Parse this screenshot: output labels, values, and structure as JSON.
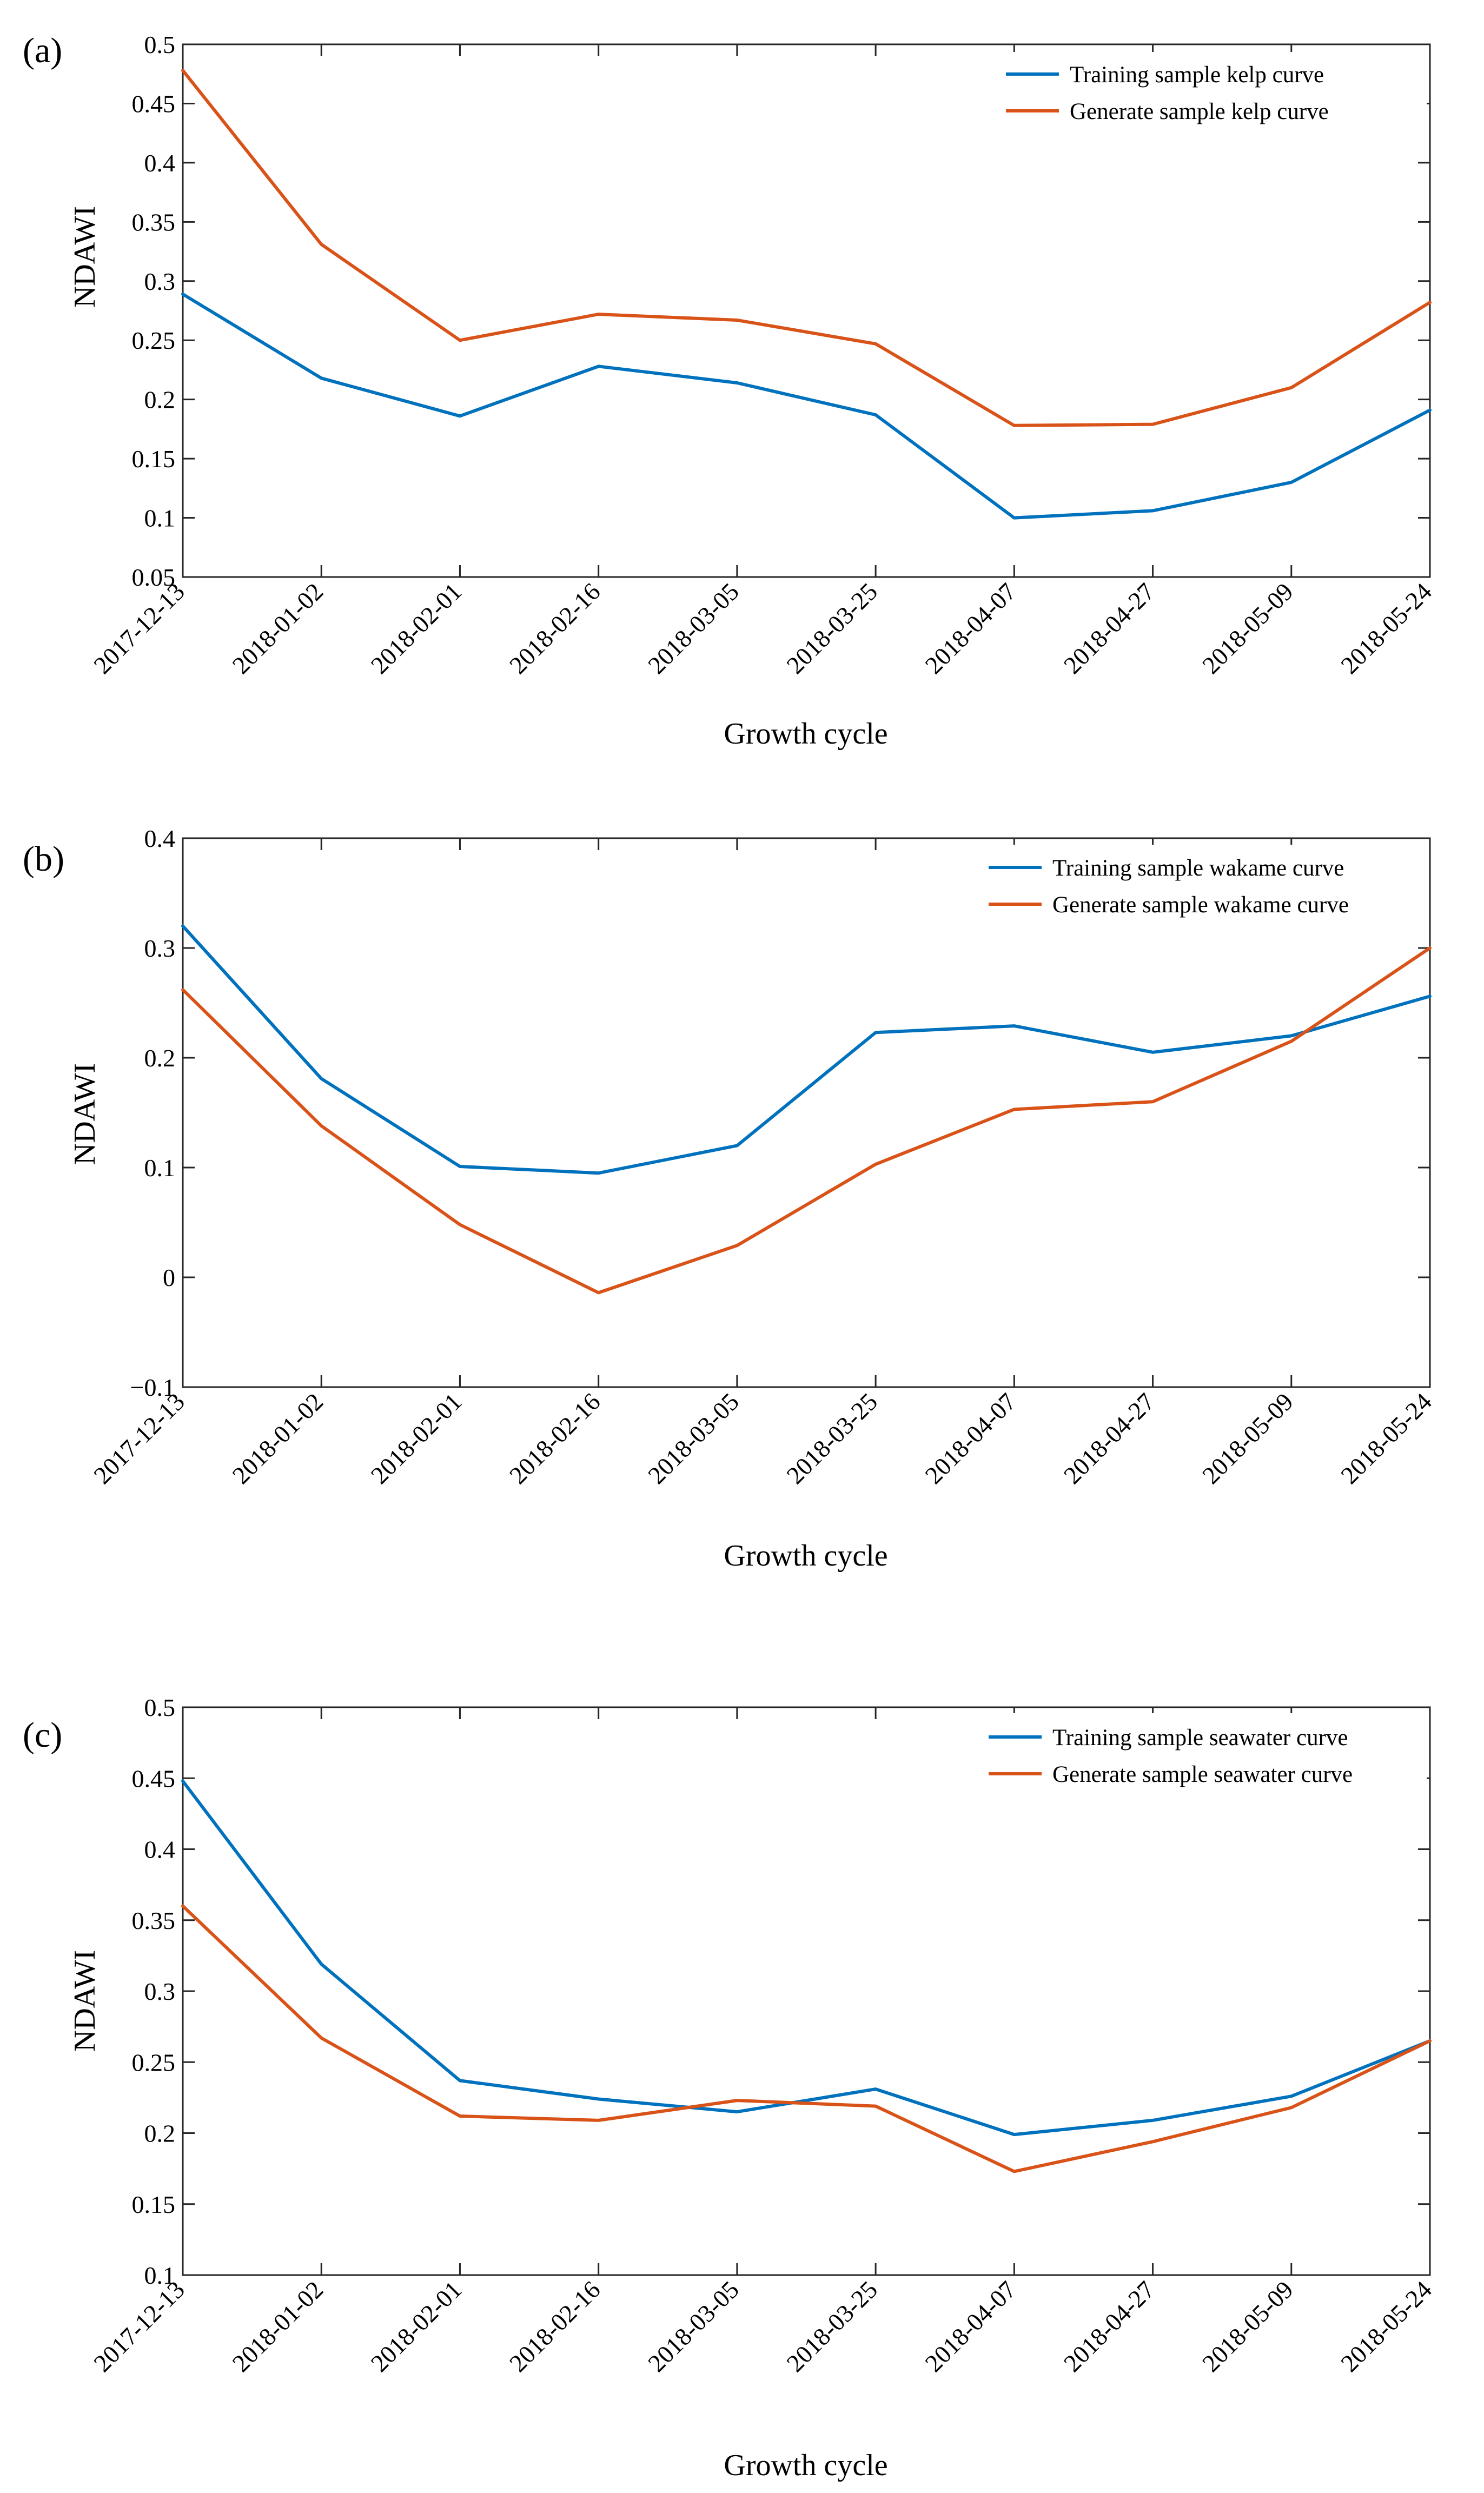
{
  "chart_data": [
    {
      "type": "line",
      "panel_label": "(a)",
      "xlabel": "Growth cycle",
      "ylabel": "NDAWI",
      "categories": [
        "2017-12-13",
        "2018-01-02",
        "2018-02-01",
        "2018-02-16",
        "2018-03-05",
        "2018-03-25",
        "2018-04-07",
        "2018-04-27",
        "2018-05-09",
        "2018-05-24"
      ],
      "ylim": [
        0.05,
        0.5
      ],
      "yticks": [
        0.05,
        0.1,
        0.15,
        0.2,
        0.25,
        0.3,
        0.35,
        0.4,
        0.45,
        0.5
      ],
      "ytick_labels": [
        "0.05",
        "0.1",
        "0.15",
        "0.2",
        "0.25",
        "0.3",
        "0.35",
        "0.4",
        "0.45",
        "0.5"
      ],
      "legend_position": "top-right",
      "series": [
        {
          "name": "Training sample kelp curve",
          "color": "#0072BD",
          "values": [
            0.289,
            0.218,
            0.186,
            0.228,
            0.214,
            0.187,
            0.1,
            0.106,
            0.13,
            0.191
          ]
        },
        {
          "name": "Generate sample kelp curve",
          "color": "#D95319",
          "values": [
            0.478,
            0.331,
            0.25,
            0.272,
            0.267,
            0.247,
            0.178,
            0.179,
            0.21,
            0.282
          ]
        }
      ]
    },
    {
      "type": "line",
      "panel_label": "(b)",
      "xlabel": "Growth cycle",
      "ylabel": "NDAWI",
      "categories": [
        "2017-12-13",
        "2018-01-02",
        "2018-02-01",
        "2018-02-16",
        "2018-03-05",
        "2018-03-25",
        "2018-04-07",
        "2018-04-27",
        "2018-05-09",
        "2018-05-24"
      ],
      "ylim": [
        -0.1,
        0.4
      ],
      "yticks": [
        -0.1,
        0,
        0.1,
        0.2,
        0.3,
        0.4
      ],
      "ytick_labels": [
        "−0.1",
        "0",
        "0.1",
        "0.2",
        "0.3",
        "0.4"
      ],
      "legend_position": "top-right",
      "series": [
        {
          "name": "Training sample wakame curve",
          "color": "#0072BD",
          "values": [
            0.32,
            0.181,
            0.101,
            0.095,
            0.12,
            0.223,
            0.229,
            0.205,
            0.22,
            0.256
          ]
        },
        {
          "name": "Generate sample wakame curve",
          "color": "#D95319",
          "values": [
            0.262,
            0.138,
            0.048,
            -0.014,
            0.029,
            0.103,
            0.153,
            0.16,
            0.215,
            0.3
          ]
        }
      ]
    },
    {
      "type": "line",
      "panel_label": "(c)",
      "xlabel": "Growth cycle",
      "ylabel": "NDAWI",
      "categories": [
        "2017-12-13",
        "2018-01-02",
        "2018-02-01",
        "2018-02-16",
        "2018-03-05",
        "2018-03-25",
        "2018-04-07",
        "2018-04-27",
        "2018-05-09",
        "2018-05-24"
      ],
      "ylim": [
        0.1,
        0.5
      ],
      "yticks": [
        0.1,
        0.15,
        0.2,
        0.25,
        0.3,
        0.35,
        0.4,
        0.45,
        0.5
      ],
      "ytick_labels": [
        "0.1",
        "0.15",
        "0.2",
        "0.25",
        "0.3",
        "0.35",
        "0.4",
        "0.45",
        "0.5"
      ],
      "legend_position": "top-right",
      "series": [
        {
          "name": "Training sample seawater curve",
          "color": "#0072BD",
          "values": [
            0.448,
            0.319,
            0.237,
            0.224,
            0.215,
            0.231,
            0.199,
            0.209,
            0.226,
            0.265
          ]
        },
        {
          "name": "Generate sample seawater curve",
          "color": "#D95319",
          "values": [
            0.36,
            0.267,
            0.212,
            0.209,
            0.223,
            0.219,
            0.173,
            0.194,
            0.218,
            0.265
          ]
        }
      ]
    }
  ]
}
